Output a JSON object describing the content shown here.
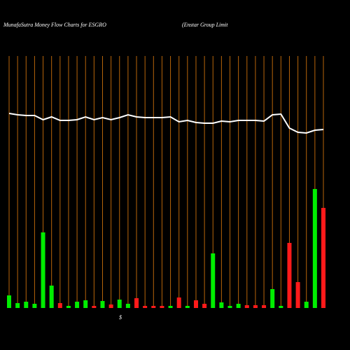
{
  "chart_data": {
    "type": "money-flow",
    "title": "MunafaSutra  Money Flow  Charts for ESGRO",
    "subtitle": "(Enstar Group Limit",
    "axis_symbol": "$",
    "ylim": [
      0,
      360
    ],
    "grid_color": "#b8650a",
    "line_color": "#ffffff",
    "up_color": "#00ee00",
    "down_color": "#ff1a1a",
    "line": [
      278,
      276,
      275,
      275,
      269,
      273,
      268,
      268,
      269,
      273,
      269,
      272,
      269,
      272,
      276,
      273,
      272,
      272,
      272,
      273,
      266,
      268,
      265,
      264,
      264,
      267,
      266,
      268,
      268,
      268,
      267,
      276,
      277,
      257,
      251,
      250,
      254,
      255
    ],
    "bars": [
      18,
      7,
      9,
      6,
      108,
      32,
      7,
      3,
      9,
      11,
      3,
      10,
      5,
      12,
      6,
      14,
      3,
      3,
      3,
      3,
      15,
      3,
      11,
      6,
      78,
      8,
      3,
      6,
      4,
      4,
      4,
      27,
      3,
      93,
      37,
      9,
      170,
      143
    ],
    "bar_dir": [
      "up",
      "up",
      "up",
      "up",
      "up",
      "up",
      "down",
      "up",
      "up",
      "up",
      "down",
      "up",
      "down",
      "up",
      "up",
      "down",
      "down",
      "down",
      "down",
      "up",
      "down",
      "up",
      "down",
      "down",
      "up",
      "up",
      "up",
      "up",
      "down",
      "down",
      "down",
      "up",
      "up",
      "down",
      "down",
      "up",
      "up",
      "down"
    ]
  }
}
